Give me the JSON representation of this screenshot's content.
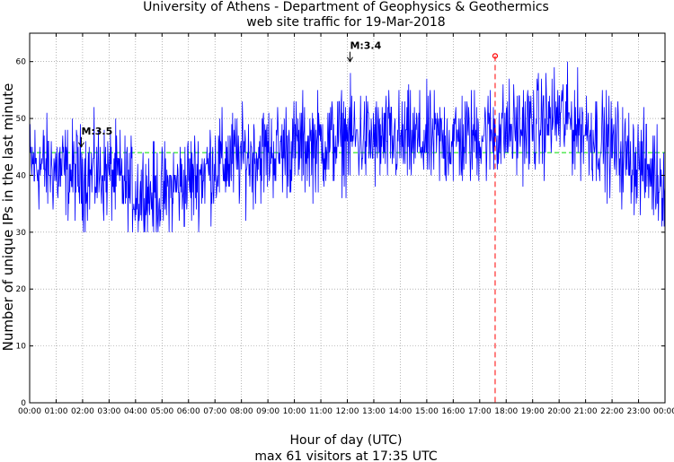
{
  "chart_data": {
    "type": "line",
    "title": "University of Athens - Department of Geophysics & Geothermics",
    "subtitle": "web site traffic for 19-Mar-2018",
    "xlabel": "Hour of day (UTC)",
    "footer": "max 61 visitors at 17:35 UTC",
    "ylabel": "Number of unique IPs in the last minute",
    "ylim": [
      0,
      65
    ],
    "yticks": [
      0,
      10,
      20,
      30,
      40,
      50,
      60
    ],
    "xlim_hours": [
      0,
      24
    ],
    "xtick_labels": [
      "00:00",
      "01:00",
      "02:00",
      "03:00",
      "04:00",
      "05:00",
      "06:00",
      "07:00",
      "08:00",
      "09:00",
      "10:00",
      "11:00",
      "12:00",
      "13:00",
      "14:00",
      "15:00",
      "16:00",
      "17:00",
      "18:00",
      "19:00",
      "20:00",
      "21:00",
      "22:00",
      "23:00",
      "00:00"
    ],
    "grid": true,
    "series_color": "#0000ff",
    "average_line": {
      "value": 44,
      "color": "#00dd00"
    },
    "trend_hourly": [
      42,
      41,
      40,
      40.5,
      37,
      36.5,
      39,
      42,
      43,
      44,
      45,
      45.5,
      47,
      46,
      46,
      46,
      46,
      47,
      48,
      48.5,
      50.5,
      48,
      45,
      42,
      39
    ],
    "max_marker": {
      "hour": 17.583,
      "value": 61,
      "color": "#ff0000"
    },
    "annotations": [
      {
        "label": "M:3.5",
        "hour": 1.95,
        "value": 45
      },
      {
        "label": "M:3.4",
        "hour": 12.1,
        "value": 60
      }
    ]
  }
}
